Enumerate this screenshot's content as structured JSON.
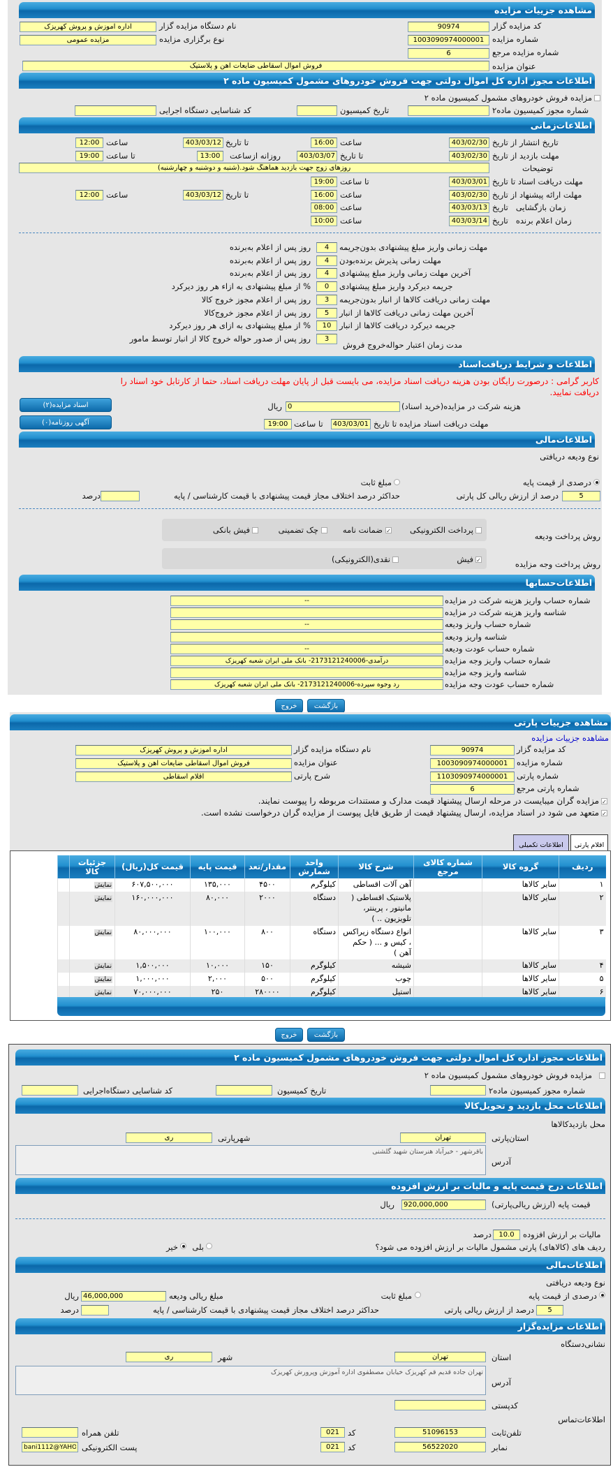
{
  "colors": {
    "header": "#1b86c8",
    "input": "#ffffa8",
    "panel": "#e6e6e6",
    "notice": "#ff0000",
    "link": "#0000cc"
  },
  "auction": {
    "title": "مشاهده جزییات مزایده",
    "code_label": "کد مزایده گزار",
    "code": "90974",
    "org_label": "نام دستگاه مزایده گزار",
    "org": "اداره اموزش و پروش کهریزک",
    "number_label": "شماره مزایده",
    "number": "1003090974000001",
    "type_label": "نوع برگزاری مزایده",
    "type": "مزایده عمومی",
    "ref_label": "شماره مزایده مرجع",
    "ref": "6",
    "subject_label": "عنوان مزایده",
    "subject": "فروش اموال اسقاطی ضایعات آهن و پلاستیک"
  },
  "permit": {
    "title": "اطلاعات مجوز اداره کل اموال دولتی جهت فروش خودروهای مشمول کمیسیون ماده ۲",
    "checkbox_label": "مزایده فروش خودروهای مشمول کمیسیون ماده ۲",
    "permit_no_label": "شماره مجوز کمیسیون ماده۲",
    "date_label": "تاریخ کمیسیون",
    "exec_code_label": "کد شناسایی دستگاه اجرایی"
  },
  "timing": {
    "title": "اطلاعات‌زمانی",
    "publish": {
      "label": "تاریخ انتشار از تاریخ",
      "from": "1403/02/30",
      "time_label": "ساعت",
      "time": "16:00",
      "to_label": "تا تاریخ",
      "to": "1403/03/12",
      "to_time_label": "ساعت",
      "to_time": "12:00"
    },
    "visit": {
      "label": "مهلت بازدید از تاریخ",
      "from": "1403/02/30",
      "to_label": "تا تاریخ",
      "to": "1403/03/07",
      "daily_label": "روزانه ازساعت",
      "daily_from": "13:00",
      "until_label": "تا ساعت",
      "until": "19:00"
    },
    "desc": {
      "label": "توضیحات",
      "value": "روزهای زوج جهت بازدید هماهنگ شود.(شنبه و دوشنبه و چهارشنبه)"
    },
    "docs": {
      "label": "مهلت دریافت اسناد تا تاریخ",
      "date": "1403/03/01",
      "time_label": "تا ساعت",
      "time": "19:00"
    },
    "proposal": {
      "label": "مهلت ارائه پیشنهاد از تاریخ",
      "from": "1403/02/30",
      "time_label": "ساعت",
      "time": "16:00",
      "to_label": "تا تاریخ",
      "to": "1403/03/12",
      "to_time_label": "ساعت",
      "to_time": "12:00"
    },
    "opening": {
      "label": "زمان بازگشایی   تاریخ",
      "date": "1403/03/13",
      "time_label": "ساعت",
      "time": "08:00"
    },
    "winner": {
      "label": "زمان اعلام برنده   تاریخ",
      "date": "1403/03/14",
      "time_label": "ساعت",
      "time": "10:00"
    }
  },
  "deadlines": [
    {
      "label": "مهلت زمانی واریز مبلغ پیشنهادی بدون‌جریمه",
      "value": "4",
      "suffix": "روز پس از اعلام به‌برنده"
    },
    {
      "label": "مهلت زمانی پذیرش برنده‌بودن",
      "value": "4",
      "suffix": "روز پس از اعلام به‌برنده"
    },
    {
      "label": "آخرین مهلت زمانی واریز مبلغ پیشنهادی",
      "value": "4",
      "suffix": "روز پس از اعلام به‌برنده"
    },
    {
      "label": "جریمه دیرکرد واریز مبلغ پیشنهادی",
      "value": "0",
      "suffix": "% از مبلغ پیشنهادی به ازاء هر روز دیرکرد"
    },
    {
      "label": "مهلت زمانی دریافت کالاها از انبار بدون‌جریمه",
      "value": "3",
      "suffix": "روز پس از اعلام مجوز خروج کالا"
    },
    {
      "label": "آخرین مهلت زمانی دریافت کالاها از انبار",
      "value": "5",
      "suffix": "روز پس از اعلام مجوز خروج‌کالا"
    },
    {
      "label": "جریمه دیرکرد دریافت کالاها از انبار",
      "value": "10",
      "suffix": "% از مبلغ پیشنهادی به ازای هر روز دیرکرد"
    },
    {
      "label": "مدت زمان اعتبار حواله‌خروج فروش",
      "value": "3",
      "suffix": "روز پس از صدور حواله خروج کالا از انبار توسط مامور"
    }
  ],
  "docs": {
    "title": "اطلاعات و شرایط دریافت‌اسناد",
    "notice": "کاربر گرامی : درصورت رایگان بودن هزینه دریافت اسناد مزایده، می بایست قبل از پایان مهلت دریافت اسناد، حتما از کارتابل خود اسناد را دریافت نمایید.",
    "fee_label": "هزینه شرکت در مزایده(خرید اسناد)",
    "fee": "0",
    "fee_unit": "ریال",
    "deadline_label": "مهلت دریافت اسناد مزایده تا تاریخ",
    "deadline_date": "1403/03/01",
    "time_label": "تا ساعت",
    "time": "19:00",
    "docs_button": "اسناد مزایده(۲)",
    "ad_button": "آگهی روزنامه(۰)"
  },
  "finance": {
    "title": "اطلاعات‌مالی",
    "deposit_type_label": "نوع ودیعه دریافتی",
    "opt_percent": "درصدی از قیمت پایه",
    "opt_fixed": "مبلغ ثابت",
    "selected": "percent",
    "percent": "5",
    "percent_label": "درصد از ارزش ریالی کل پارتی",
    "max_diff_label": "حداکثر درصد اختلاف مجاز قیمت پیشنهادی با قیمت کارشناسی / پایه",
    "max_diff_unit": "درصد",
    "deposit_methods_label": "روش پرداخت ودیعه",
    "deposit_methods": [
      {
        "label": "پرداخت الکترونیکی",
        "checked": false
      },
      {
        "label": "ضمانت نامه",
        "checked": true
      },
      {
        "label": "چک تضمینی",
        "checked": false
      },
      {
        "label": "فیش بانکی",
        "checked": false
      }
    ],
    "payment_label": "روش پرداخت وجه مزایده",
    "payment_methods": [
      {
        "label": "فیش",
        "checked": true
      },
      {
        "label": "نقدی(الکترونیکی)",
        "checked": false
      }
    ]
  },
  "accounts": {
    "title": "اطلاعات‌حسابها",
    "rows": [
      {
        "label": "شماره حساب واریز هزینه شرکت در مزایده",
        "value": "--"
      },
      {
        "label": "شناسه واریز هزینه شرکت در مزایده",
        "value": ""
      },
      {
        "label": "شماره حساب واریز ودیعه",
        "value": "--"
      },
      {
        "label": "شناسه واریز ودیعه",
        "value": ""
      },
      {
        "label": "شماره حساب عودت ودیعه",
        "value": "--"
      },
      {
        "label": "شماره حساب واریز وجه مزایده",
        "value": "درآمدی-2173121240006- بانک ملی ایران شعبه کهریزک"
      },
      {
        "label": "شناسه واریز وجه مزایده",
        "value": ""
      },
      {
        "label": "شماره حساب عودت وجه مزایده",
        "value": "رد وجوه سپرده-2173121240006- بانک ملی ایران شعبه کهریزک"
      }
    ]
  },
  "actions": {
    "back": "بازگشت",
    "exit": "خروج"
  },
  "party": {
    "title": "مشاهده جزییات پارتی",
    "link": "مشاهده جزییات مزایده",
    "code_label": "کد مزایده گزار",
    "code": "90974",
    "org_label": "نام دستگاه مزایده گزار",
    "org": "اداره اموزش و پروش کهریزک",
    "number_label": "شماره مزایده",
    "number": "1003090974000001",
    "subject_label": "عنوان مزایده",
    "subject": "فروش اموال اسقاطی ضایعات آهن و پلاستیک",
    "party_no_label": "شماره پارتی",
    "party_no": "1103090974000001",
    "desc_label": "شرح پارتی",
    "desc": "اقلام اسقاطی",
    "ref_label": "شماره پارتی مرجع",
    "ref": "6",
    "check1": "مزایده گران میبایست در مرحله ارسال پیشنهاد قیمت مدارک و مستندات مربوطه را پیوست نمایند.",
    "check2": "متعهد می شود در اسناد مزایده، ارسال پیشنهاد قیمت از طریق فایل پیوست از مزایده گران درخواست نشده است.",
    "tabs": [
      "اقلام پارتی",
      "اطلاعات تکمیلی"
    ]
  },
  "items": {
    "columns": [
      "ردیف",
      "گروه کالا",
      "شماره کالای مرجع",
      "شرح کالا",
      "واحد شمارش",
      "مقدار/تعد",
      "قیمت پایه",
      "قیمت کل(ریال)",
      "جزئیات کالا"
    ],
    "detail_label": "نمایش",
    "rows": [
      [
        "۱",
        "سایر کالاها",
        "",
        "آهن آلات اقساطی",
        "کیلوگرم",
        "۴۵۰۰",
        "۱۳۵,۰۰۰",
        "۶۰۷,۵۰۰,۰۰۰"
      ],
      [
        "۲",
        "سایر کالاها",
        "",
        "پلاستیک اقساطی ( مانیتور ، پرینتر، تلویزیون .. )",
        "دستگاه",
        "۲۰۰۰",
        "۸۰,۰۰۰",
        "۱۶۰,۰۰۰,۰۰۰"
      ],
      [
        "۳",
        "سایر کالاها",
        "",
        "انواع دستگاه زیراکس ، کیس و ... ( حکم آهن )",
        "دستگاه",
        "۸۰۰",
        "۱۰۰,۰۰۰",
        "۸۰,۰۰۰,۰۰۰"
      ],
      [
        "۴",
        "سایر کالاها",
        "",
        "شیشه",
        "کیلوگرم",
        "۱۵۰",
        "۱۰,۰۰۰",
        "۱,۵۰۰,۰۰۰"
      ],
      [
        "۵",
        "سایر کالاها",
        "",
        "چوب",
        "کیلوگرم",
        "۵۰۰",
        "۲,۰۰۰",
        "۱,۰۰۰,۰۰۰"
      ],
      [
        "۶",
        "سایر کالاها",
        "",
        "استیل",
        "کیلوگرم",
        "۲۸۰۰۰۰",
        "۲۵۰",
        "۷۰,۰۰۰,۰۰۰"
      ]
    ]
  },
  "permit2": {
    "title": "اطلاعات مجوز اداره کل اموال دولتی جهت فروش خودروهای مشمول کمیسیون ماده ۲",
    "checkbox_label": "مزایده فروش خودروهای مشمول کمیسیون ماده ۲",
    "permit_no_label": "شماره مجوز کمیسیون ماده۲",
    "date_label": "تاریخ کمیسیون",
    "exec_code_label": "کد شناسایی دستگاه‌اجرایی"
  },
  "visit_location": {
    "title": "اطلاعات محل بازدید و تحویل‌کالا",
    "place_label": "محل بازدیدکالاها",
    "province_label": "استان‌پارتی",
    "province": "تهران",
    "city_label": "شهرپارتی",
    "city": "ری",
    "address_label": "آدرس",
    "address": "باقرشهر - خیرآباد هنرستان شهید گلشنی"
  },
  "pricing": {
    "title": "اطلاعات درج قیمت پایه و مالیات بر ارزش افزوده",
    "base_label": "قیمت پایه (ارزش ریالی‌پارتی)",
    "base": "920,000,000",
    "unit": "ریال",
    "vat_label": "مالیات بر ارزش افزوده",
    "vat": "10.0",
    "vat_unit": "درصد",
    "vat_question": "ردیف های (کالاهای) پارتی مشمول مالیات بر ارزش افزوده می شود؟",
    "yes": "بلی",
    "no": "خیر",
    "vat_selected": "no"
  },
  "finance2": {
    "title": "اطلاعات‌مالی",
    "deposit_type_label": "نوع ودیعه دریافتی",
    "opt_percent": "درصدی از قیمت پایه",
    "opt_fixed": "مبلغ ثابت",
    "selected": "percent",
    "amount_label": "مبلغ ریالی ودیعه",
    "amount": "46,000,000",
    "amount_unit": "ریال",
    "percent": "5",
    "percent_label": "درصد از ارزش ریالی پارتی",
    "max_diff_label": "حداکثر درصد اختلاف مجاز قیمت پیشنهادی با قیمت کارشناسی / پایه",
    "max_diff_unit": "درصد"
  },
  "auctioneer": {
    "title": "اطلاعات مزایده‌گزار",
    "address_title": "نشانی‌دستگاه",
    "province_label": "استان",
    "province": "تهران",
    "city_label": "شهر",
    "city": "ری",
    "address_label": "آدرس",
    "address": "تهران جاده قدیم قم کهریزک خیابان مصطفوی اداره آموزش وپرورش کهریزک",
    "postal_label": "کدپستی",
    "contact_title": "اطلاعات‌تماس",
    "phone_label": "تلفن‌ثابت",
    "phone": "51096153",
    "code_label": "کد",
    "phone_code": "021",
    "mobile_label": "تلفن همراه",
    "fax_label": "نمابر",
    "fax": "56522020",
    "fax_code": "021",
    "email_label": "پست الکترونیکی",
    "email": "bani1112@YAHOO"
  }
}
